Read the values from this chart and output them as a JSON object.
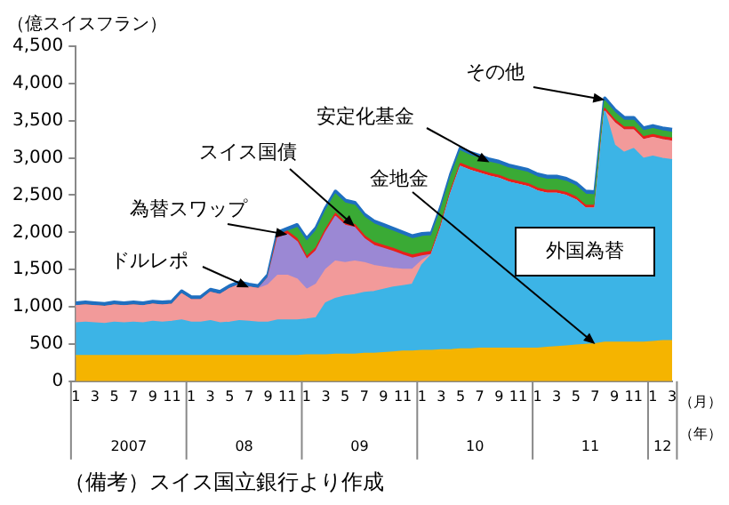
{
  "chart_data": {
    "type": "area",
    "stacked": true,
    "ylabel": "（億スイスフラン）",
    "categories": [
      "1",
      null,
      "3",
      null,
      "5",
      null,
      "7",
      null,
      "9",
      null,
      "11",
      null,
      "1",
      null,
      "3",
      null,
      "5",
      null,
      "7",
      null,
      "9",
      null,
      "11",
      null,
      "1",
      null,
      "3",
      null,
      "5",
      null,
      "7",
      null,
      "9",
      null,
      "11",
      null,
      "1",
      null,
      "3",
      null,
      "5",
      null,
      "7",
      null,
      "9",
      null,
      "11",
      null,
      "1",
      null,
      "3",
      null,
      "5",
      null,
      "7",
      null,
      "9",
      null,
      "11",
      null,
      "1",
      null,
      "3"
    ],
    "ylim": [
      0,
      4500
    ],
    "yticks": [
      0,
      {
        "value": 500,
        "label": "500"
      },
      {
        "value": 1000,
        "label": "1,000"
      },
      {
        "value": 1500,
        "label": "1,500"
      },
      {
        "value": 2000,
        "label": "2,000"
      },
      {
        "value": 2500,
        "label": "2,500"
      },
      {
        "value": 3000,
        "label": "3,000"
      },
      {
        "value": 3500,
        "label": "3,500"
      },
      {
        "value": 4000,
        "label": "4,000"
      },
      {
        "value": 4500,
        "label": "4,500"
      }
    ],
    "grid": false,
    "legend": false,
    "series": [
      {
        "name": "金地金",
        "color": "#f5b400",
        "values": [
          340,
          340,
          340,
          340,
          340,
          340,
          340,
          340,
          340,
          340,
          340,
          340,
          340,
          340,
          340,
          340,
          340,
          340,
          340,
          340,
          340,
          340,
          340,
          340,
          350,
          350,
          350,
          360,
          360,
          360,
          370,
          370,
          380,
          390,
          400,
          400,
          410,
          410,
          420,
          420,
          430,
          430,
          440,
          440,
          440,
          440,
          440,
          440,
          440,
          450,
          460,
          470,
          480,
          490,
          500,
          520,
          520,
          520,
          520,
          520,
          530,
          540,
          540
        ]
      },
      {
        "name": "外国為替",
        "color": "#3cb4e6",
        "values": [
          440,
          450,
          440,
          430,
          450,
          440,
          450,
          440,
          460,
          450,
          460,
          480,
          450,
          450,
          470,
          440,
          450,
          470,
          460,
          450,
          450,
          480,
          480,
          480,
          480,
          500,
          700,
          750,
          780,
          800,
          820,
          830,
          850,
          870,
          880,
          900,
          1150,
          1290,
          1650,
          2100,
          2450,
          2400,
          2350,
          2310,
          2280,
          2230,
          2200,
          2170,
          2110,
          2070,
          2060,
          2020,
          1950,
          1830,
          1820,
          3100,
          2650,
          2550,
          2600,
          2470,
          2490,
          2450,
          2430
        ]
      },
      {
        "name": "ドルレポ",
        "color": "#f29a9a",
        "values": [
          230,
          230,
          230,
          230,
          230,
          230,
          230,
          230,
          230,
          230,
          230,
          350,
          300,
          300,
          380,
          380,
          450,
          480,
          460,
          450,
          500,
          600,
          600,
          550,
          400,
          450,
          450,
          500,
          450,
          450,
          400,
          350,
          300,
          250,
          220,
          200,
          60,
          0,
          0,
          0,
          0,
          0,
          0,
          0,
          0,
          0,
          0,
          0,
          0,
          0,
          0,
          0,
          0,
          0,
          0,
          0,
          300,
          300,
          250,
          250,
          250,
          250,
          250
        ]
      },
      {
        "name": "為替スワップ",
        "color": "#9b88d4",
        "values": [
          0,
          0,
          0,
          0,
          0,
          0,
          0,
          0,
          0,
          0,
          0,
          0,
          0,
          0,
          0,
          0,
          0,
          0,
          0,
          0,
          100,
          500,
          550,
          500,
          400,
          450,
          500,
          600,
          500,
          450,
          320,
          270,
          250,
          230,
          190,
          150,
          60,
          0,
          0,
          0,
          0,
          0,
          0,
          0,
          0,
          0,
          0,
          0,
          0,
          0,
          0,
          0,
          0,
          0,
          0,
          0,
          0,
          0,
          0,
          0,
          0,
          0,
          0
        ]
      },
      {
        "name": "スイス国債",
        "color": "#e8201a",
        "values": [
          0,
          0,
          0,
          0,
          0,
          0,
          0,
          0,
          0,
          0,
          0,
          0,
          0,
          0,
          0,
          0,
          0,
          0,
          0,
          0,
          0,
          40,
          40,
          40,
          40,
          40,
          40,
          40,
          40,
          40,
          40,
          40,
          40,
          40,
          40,
          40,
          40,
          40,
          40,
          40,
          40,
          40,
          40,
          40,
          40,
          40,
          40,
          40,
          40,
          40,
          40,
          40,
          40,
          40,
          40,
          40,
          40,
          40,
          40,
          40,
          40,
          40,
          40
        ]
      },
      {
        "name": "安定化基金",
        "color": "#3aaa35",
        "values": [
          0,
          0,
          0,
          0,
          0,
          0,
          0,
          0,
          0,
          0,
          0,
          0,
          0,
          0,
          0,
          0,
          0,
          0,
          0,
          0,
          0,
          0,
          0,
          150,
          200,
          230,
          250,
          260,
          260,
          260,
          250,
          250,
          240,
          230,
          230,
          220,
          220,
          210,
          200,
          180,
          170,
          160,
          160,
          150,
          150,
          150,
          150,
          150,
          150,
          150,
          150,
          150,
          150,
          150,
          140,
          100,
          100,
          90,
          90,
          80,
          80,
          80,
          80
        ]
      },
      {
        "name": "その他",
        "color": "#1f6fc0",
        "values": [
          40,
          40,
          40,
          40,
          40,
          40,
          40,
          40,
          40,
          40,
          40,
          40,
          40,
          40,
          40,
          40,
          40,
          40,
          40,
          40,
          40,
          40,
          40,
          40,
          40,
          40,
          40,
          40,
          40,
          40,
          40,
          40,
          40,
          40,
          40,
          40,
          40,
          40,
          40,
          40,
          40,
          40,
          40,
          40,
          40,
          40,
          40,
          40,
          40,
          40,
          40,
          40,
          40,
          40,
          40,
          40,
          40,
          40,
          40,
          40,
          40,
          40,
          40
        ]
      }
    ],
    "annotations": [
      "2007",
      "08",
      "09",
      "10",
      "11",
      "12",
      "（月）",
      "（年）",
      "（備考）スイス国立銀行より作成"
    ]
  }
}
